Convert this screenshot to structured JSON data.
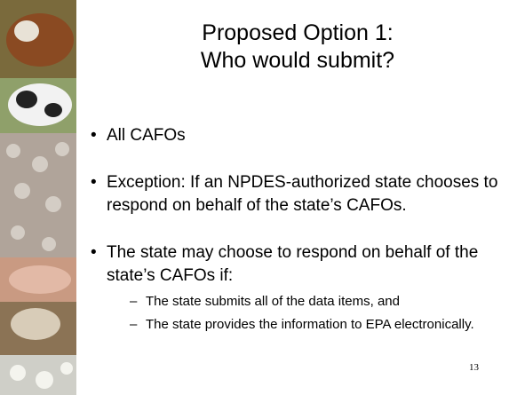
{
  "slide": {
    "title": [
      "Proposed Option 1:",
      "Who would submit?"
    ],
    "bullets": [
      {
        "text": "All CAFOs",
        "subs": []
      },
      {
        "text": "Exception:  If an NPDES-authorized state chooses to respond on behalf of the state’s CAFOs.",
        "subs": []
      },
      {
        "text": "The state may choose to respond on behalf of the state’s CAFOs if:",
        "subs": [
          "The state submits all of the data items, and",
          "The state provides the information to EPA electronically."
        ]
      }
    ],
    "page_number": "13"
  }
}
